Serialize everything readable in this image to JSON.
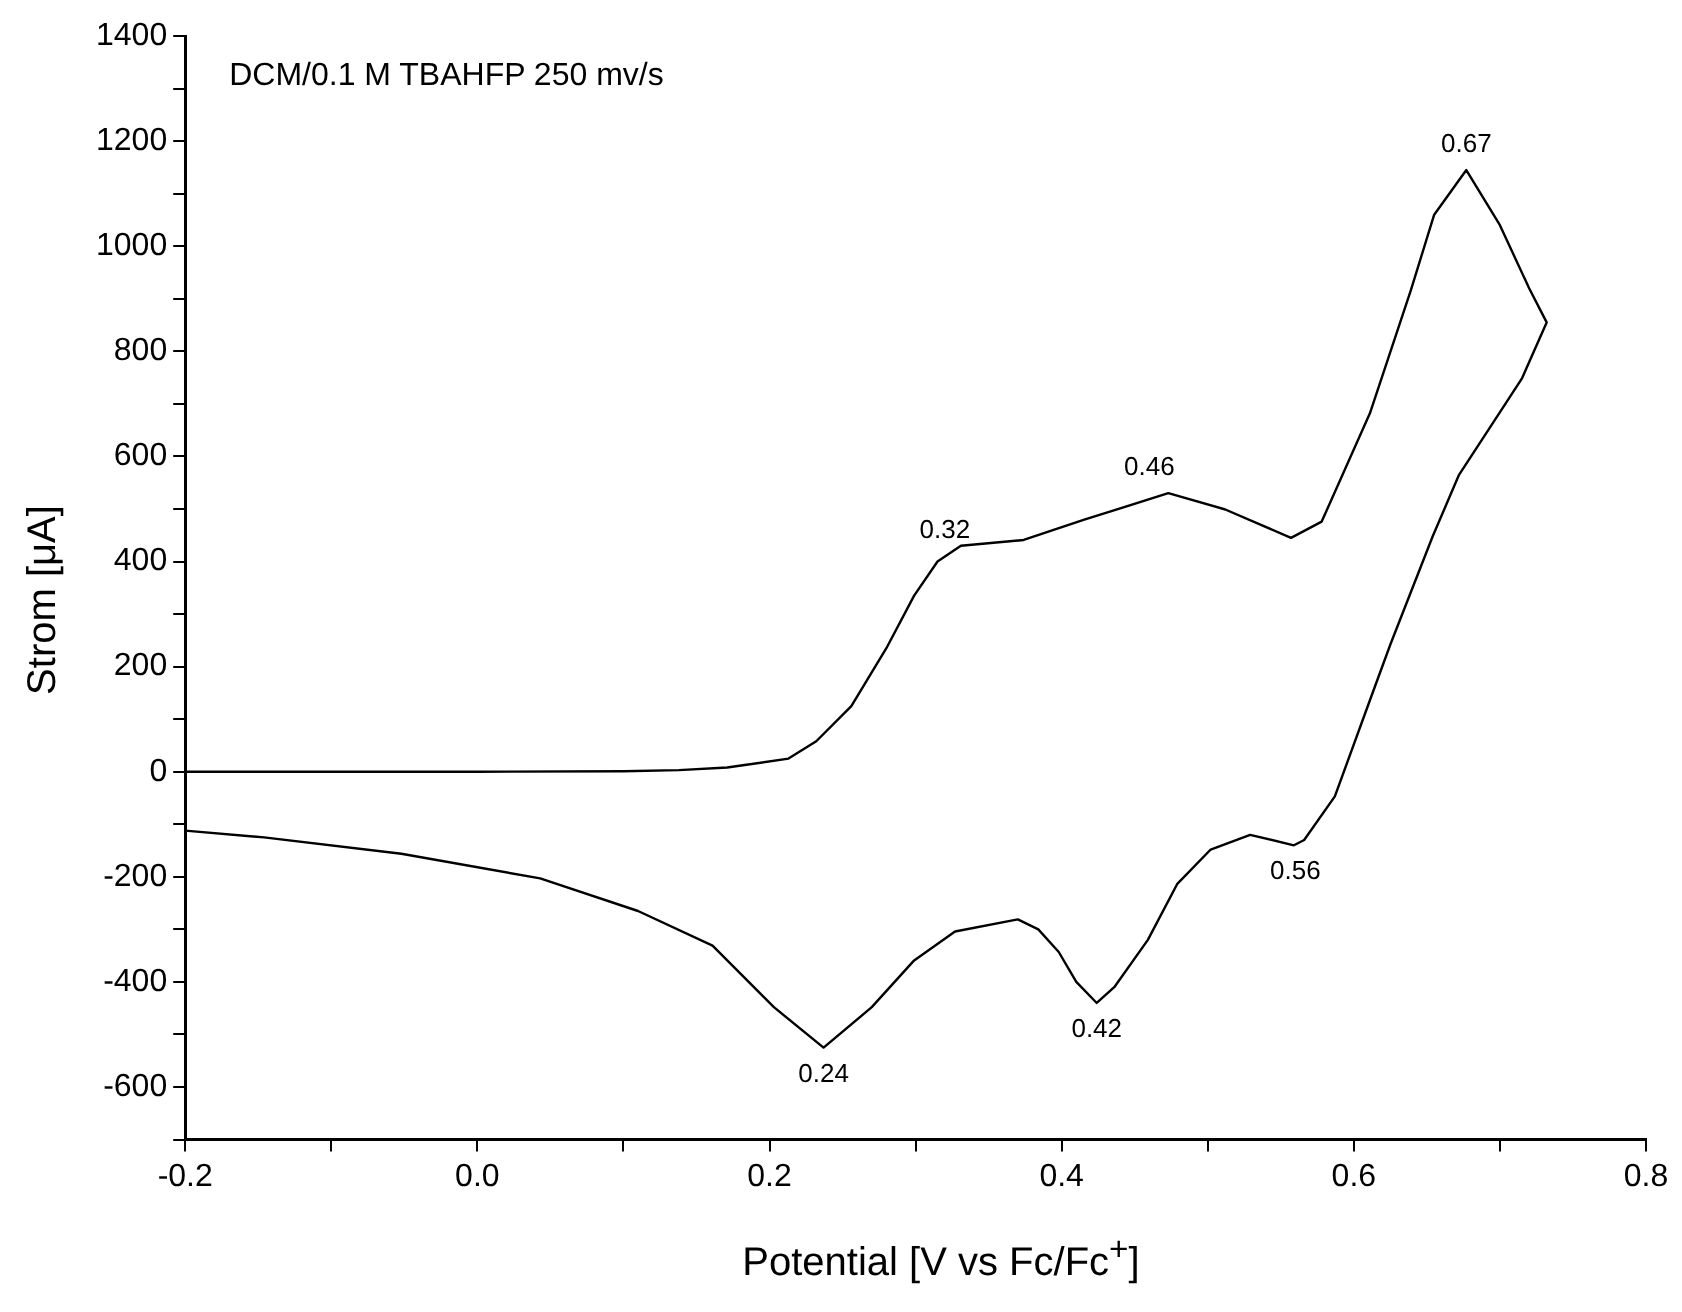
{
  "chart_data": {
    "type": "line",
    "xlabel": "Potential [V vs Fc/Fc$^{+}$]",
    "ylabel": "Strom [μA]",
    "annotations": [
      "DCM/0.1 M TBAHFP 250 mv/s",
      {
        "text": "0.32",
        "x": 0.32,
        "y": 410
      },
      {
        "text": "0.46",
        "x": 0.46,
        "y": 530
      },
      {
        "text": "0.67",
        "x": 0.677,
        "y": 1145
      },
      {
        "text": "0.56",
        "x": 0.56,
        "y": -140
      },
      {
        "text": "0.42",
        "x": 0.424,
        "y": -440
      },
      {
        "text": "0.24",
        "x": 0.237,
        "y": -525
      }
    ],
    "series": [
      {
        "color": "#000000",
        "x": [
          -0.2,
          -0.1,
          0,
          0.1,
          0.138,
          0.171,
          0.213,
          0.232,
          0.256,
          0.28,
          0.299,
          0.315,
          0.331,
          0.374,
          0.416,
          0.473,
          0.512,
          0.557,
          0.578,
          0.611,
          0.639,
          0.655,
          0.677,
          0.7,
          0.72,
          0.732,
          0.715,
          0.672,
          0.654,
          0.625,
          0.611,
          0.587,
          0.566,
          0.559,
          0.529,
          0.502,
          0.479,
          0.459,
          0.436,
          0.424,
          0.41,
          0.398,
          0.384,
          0.37,
          0.327,
          0.299,
          0.27,
          0.237,
          0.203,
          0.161,
          0.11,
          0.043,
          -0.052,
          -0.146,
          -0.2
        ],
        "values": [
          0,
          0,
          0,
          1,
          3,
          8,
          25,
          58,
          125,
          235,
          335,
          400,
          430,
          441,
          480,
          530,
          499,
          445,
          476,
          682,
          916,
          1060,
          1145,
          1040,
          920,
          855,
          748,
          565,
          448,
          242,
          136,
          -47,
          -130,
          -140,
          -120,
          -148,
          -214,
          -320,
          -410,
          -440,
          -400,
          -343,
          -300,
          -281,
          -304,
          -359,
          -448,
          -525,
          -448,
          -331,
          -265,
          -203,
          -156,
          -125,
          -112
        ]
      }
    ],
    "xlim": [
      -0.2,
      0.8
    ],
    "xticks": [
      -0.2,
      {
        "value": -0.1,
        "label": null
      },
      {
        "value": 0,
        "label": "0.0"
      },
      {
        "value": 0.1,
        "label": null
      },
      0.2,
      {
        "value": 0.3,
        "label": null
      },
      0.4,
      {
        "value": 0.5,
        "label": null
      },
      0.6,
      {
        "value": 0.7,
        "label": null
      },
      0.8
    ],
    "ylim": [
      -700,
      1400
    ],
    "yticks": [
      {
        "value": -700,
        "label": null
      },
      -600,
      {
        "value": -500,
        "label": null
      },
      -400,
      {
        "value": -300,
        "label": null
      },
      -200,
      {
        "value": -100,
        "label": null
      },
      0,
      {
        "value": 100,
        "label": null
      },
      200,
      {
        "value": 300,
        "label": null
      },
      400,
      {
        "value": 500,
        "label": null
      },
      600,
      {
        "value": 700,
        "label": null
      },
      800,
      {
        "value": 900,
        "label": null
      },
      1000,
      {
        "value": 1100,
        "label": null
      },
      1200,
      {
        "value": 1300,
        "label": null
      },
      1400
    ],
    "marker": "none",
    "line_style": "solid",
    "legend": false,
    "grid": false
  }
}
